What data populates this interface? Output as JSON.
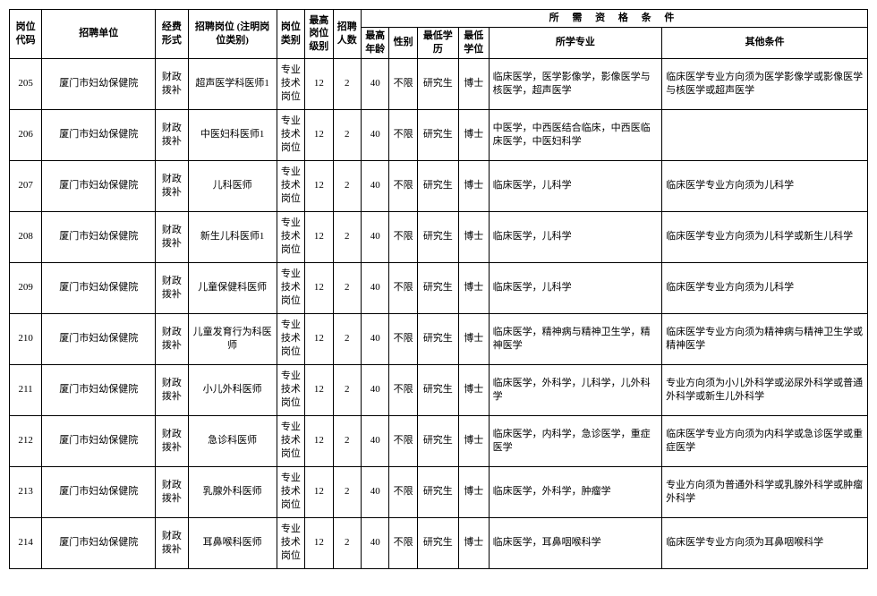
{
  "headers": {
    "qualification_group": "所 需 资 格 条 件",
    "code": "岗位代码",
    "unit": "招聘单位",
    "funding": "经费形式",
    "position": "招聘岗位 (注明岗位类别)",
    "category": "岗位类别",
    "grade": "最高岗位级别",
    "number": "招聘人数",
    "max_age": "最高年龄",
    "gender": "性别",
    "min_edu": "最低学历",
    "min_degree": "最低学位",
    "major": "所学专业",
    "other": "其他条件"
  },
  "common": {
    "unit": "厦门市妇幼保健院",
    "funding": "财政拨补",
    "category": "专业技术岗位",
    "grade": "12",
    "number": "2",
    "max_age": "40",
    "gender": "不限",
    "min_edu": "研究生",
    "min_degree": "博士"
  },
  "rows": [
    {
      "code": "205",
      "position": "超声医学科医师1",
      "major": "临床医学，医学影像学，影像医学与核医学，超声医学",
      "other": "临床医学专业方向须为医学影像学或影像医学与核医学或超声医学"
    },
    {
      "code": "206",
      "position": "中医妇科医师1",
      "major": "中医学，中西医结合临床，中西医临床医学，中医妇科学",
      "other": ""
    },
    {
      "code": "207",
      "position": "儿科医师",
      "major": "临床医学，儿科学",
      "other": "临床医学专业方向须为儿科学"
    },
    {
      "code": "208",
      "position": "新生儿科医师1",
      "major": "临床医学，儿科学",
      "other": "临床医学专业方向须为儿科学或新生儿科学"
    },
    {
      "code": "209",
      "position": "儿童保健科医师",
      "major": "临床医学，儿科学",
      "other": "临床医学专业方向须为儿科学"
    },
    {
      "code": "210",
      "position": "儿童发育行为科医师",
      "major": "临床医学，精神病与精神卫生学，精神医学",
      "other": "临床医学专业方向须为精神病与精神卫生学或精神医学"
    },
    {
      "code": "211",
      "position": "小儿外科医师",
      "major": "临床医学，外科学，儿科学，儿外科学",
      "other": "专业方向须为小儿外科学或泌尿外科学或普通外科学或新生儿外科学"
    },
    {
      "code": "212",
      "position": "急诊科医师",
      "major": "临床医学，内科学，急诊医学，重症医学",
      "other": "临床医学专业方向须为内科学或急诊医学或重症医学"
    },
    {
      "code": "213",
      "position": "乳腺外科医师",
      "major": "临床医学，外科学，肿瘤学",
      "other": "专业方向须为普通外科学或乳腺外科学或肿瘤外科学"
    },
    {
      "code": "214",
      "position": "耳鼻喉科医师",
      "major": "临床医学，耳鼻咽喉科学",
      "other": "临床医学专业方向须为耳鼻咽喉科学"
    }
  ]
}
